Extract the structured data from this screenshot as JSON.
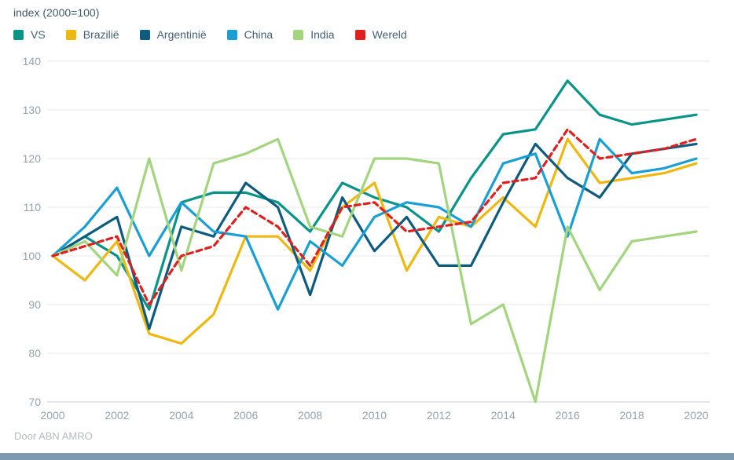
{
  "header": {
    "title": "index (2000=100)"
  },
  "footer": {
    "credit": "Door ABN AMRO"
  },
  "colors": {
    "title_text": "#3f5a6c",
    "legend_text": "#44607a",
    "axis_text": "#93a3b2",
    "gridline": "#e7e9ea",
    "baseline": "#c6ccd1",
    "footer_text": "#b4babf",
    "bottom_bar": "#7e9ab0",
    "background": "#ffffff"
  },
  "chart_data": {
    "type": "line",
    "title": "index (2000=100)",
    "xlabel": "",
    "ylabel": "",
    "x": [
      2000,
      2001,
      2002,
      2003,
      2004,
      2005,
      2006,
      2007,
      2008,
      2009,
      2010,
      2011,
      2012,
      2013,
      2014,
      2015,
      2016,
      2017,
      2018,
      2019,
      2020
    ],
    "xticks": [
      2000,
      2002,
      2004,
      2006,
      2008,
      2010,
      2012,
      2014,
      2016,
      2018,
      2020
    ],
    "ylim": [
      70,
      140
    ],
    "yticks": [
      70,
      80,
      90,
      100,
      110,
      120,
      130,
      140
    ],
    "grid": "horizontal",
    "legend_position": "top-left",
    "series": [
      {
        "name": "VS",
        "color": "#0a9488",
        "dashed": false,
        "values": [
          100,
          104,
          100,
          89,
          111,
          113,
          113,
          111,
          105,
          115,
          112,
          110,
          105,
          116,
          125,
          126,
          136,
          129,
          127,
          128,
          129
        ]
      },
      {
        "name": "Brazilië",
        "color": "#efb810",
        "dashed": false,
        "values": [
          100,
          95,
          103,
          84,
          82,
          88,
          104,
          104,
          97,
          110,
          115,
          97,
          108,
          106,
          112,
          106,
          124,
          115,
          116,
          117,
          119
        ]
      },
      {
        "name": "Argentinië",
        "color": "#0d5c7d",
        "dashed": false,
        "values": [
          100,
          104,
          108,
          85,
          106,
          104,
          115,
          110,
          92,
          112,
          101,
          108,
          98,
          98,
          111,
          123,
          116,
          112,
          121,
          122,
          123
        ]
      },
      {
        "name": "China",
        "color": "#199fd6",
        "dashed": false,
        "values": [
          100,
          106,
          114,
          100,
          111,
          105,
          104,
          89,
          103,
          98,
          108,
          111,
          110,
          106,
          119,
          121,
          104,
          124,
          117,
          118,
          120
        ]
      },
      {
        "name": "India",
        "color": "#a3d57f",
        "dashed": false,
        "values": [
          100,
          103,
          96,
          120,
          97,
          119,
          121,
          124,
          106,
          104,
          120,
          120,
          119,
          86,
          90,
          70,
          106,
          93,
          103,
          104,
          105
        ]
      },
      {
        "name": "Wereld",
        "color": "#e01f1f",
        "dashed": true,
        "values": [
          100,
          102,
          104,
          90,
          100,
          102,
          110,
          106,
          98,
          110,
          111,
          105,
          106,
          107,
          115,
          116,
          126,
          120,
          121,
          122,
          124
        ]
      }
    ]
  }
}
